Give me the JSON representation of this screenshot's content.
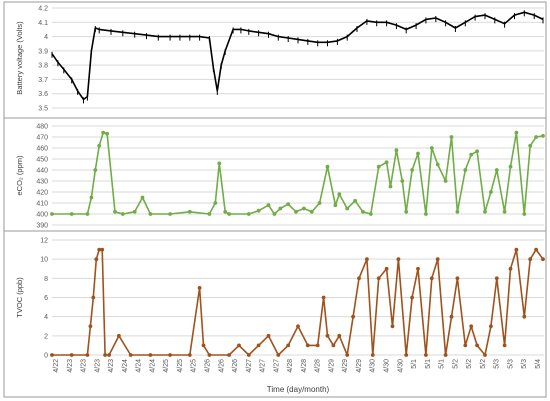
{
  "chart_data": [
    {
      "type": "line",
      "ylabel": "Battery voltage (Volts)",
      "ylim": [
        3.5,
        4.2
      ],
      "yticks": [
        "3.5",
        "3.6",
        "3.7",
        "3.8",
        "3.9",
        "4",
        "4.1",
        "4.2"
      ],
      "grid": true,
      "xrange": [
        0,
        25
      ],
      "series": [
        {
          "color": "#000000",
          "marker": "none",
          "x": [
            0.0,
            0.3,
            0.6,
            1.0,
            1.3,
            1.6,
            1.8,
            2.0,
            2.2,
            2.4,
            3.0,
            3.6,
            4.2,
            4.8,
            5.4,
            6.0,
            6.5,
            7.0,
            7.5,
            8.0,
            8.2,
            8.4,
            8.6,
            8.8,
            9.2,
            9.6,
            10.0,
            10.5,
            11.0,
            11.5,
            12.0,
            12.5,
            13.0,
            13.5,
            14.0,
            14.5,
            15.0,
            15.5,
            16.0,
            16.5,
            17.0,
            17.5,
            18.0,
            18.5,
            19.0,
            19.5,
            20.0,
            20.5,
            21.0,
            21.5,
            22.0,
            22.5,
            23.0,
            23.5,
            24.0,
            24.5,
            24.95
          ],
          "y": [
            3.88,
            3.82,
            3.77,
            3.7,
            3.62,
            3.56,
            3.58,
            3.9,
            4.06,
            4.05,
            4.04,
            4.03,
            4.02,
            4.01,
            4.0,
            4.0,
            4.0,
            4.0,
            4.0,
            3.99,
            3.78,
            3.62,
            3.8,
            3.9,
            4.05,
            4.05,
            4.04,
            4.03,
            4.02,
            4.0,
            3.99,
            3.98,
            3.97,
            3.96,
            3.96,
            3.97,
            4.0,
            4.06,
            4.11,
            4.1,
            4.1,
            4.08,
            4.05,
            4.08,
            4.12,
            4.13,
            4.1,
            4.06,
            4.1,
            4.14,
            4.15,
            4.12,
            4.09,
            4.15,
            4.17,
            4.15,
            4.12
          ]
        }
      ]
    },
    {
      "type": "line",
      "ylabel": "eCO₂ (ppm)",
      "ylim": [
        390,
        480
      ],
      "yticks": [
        "390",
        "400",
        "410",
        "420",
        "430",
        "440",
        "450",
        "460",
        "470",
        "480"
      ],
      "grid": true,
      "xrange": [
        0,
        25
      ],
      "series": [
        {
          "color": "#70ad47",
          "marker": "circle",
          "x": [
            0.0,
            1.0,
            1.8,
            2.0,
            2.2,
            2.4,
            2.6,
            2.8,
            3.2,
            3.6,
            4.2,
            4.6,
            5.0,
            6.0,
            7.0,
            8.0,
            8.3,
            8.5,
            8.8,
            9.0,
            10.0,
            10.5,
            11.0,
            11.3,
            11.6,
            12.0,
            12.4,
            12.8,
            13.2,
            13.6,
            14.0,
            14.4,
            14.6,
            15.0,
            15.4,
            15.8,
            16.2,
            16.6,
            17.0,
            17.2,
            17.5,
            17.8,
            18.0,
            18.3,
            18.6,
            19.0,
            19.3,
            19.6,
            20.0,
            20.3,
            20.6,
            21.0,
            21.3,
            21.6,
            22.0,
            22.3,
            22.6,
            23.0,
            23.3,
            23.6,
            24.0,
            24.3,
            24.6,
            24.95
          ],
          "y": [
            400,
            400,
            400,
            415,
            440,
            462,
            474,
            473,
            402,
            400,
            402,
            415,
            400,
            400,
            402,
            400,
            410,
            446,
            402,
            400,
            400,
            403,
            408,
            400,
            405,
            409,
            402,
            405,
            402,
            410,
            443,
            408,
            418,
            405,
            412,
            402,
            400,
            443,
            447,
            425,
            458,
            430,
            402,
            440,
            455,
            400,
            460,
            445,
            430,
            470,
            402,
            440,
            454,
            457,
            402,
            420,
            440,
            402,
            443,
            474,
            400,
            462,
            470,
            471
          ]
        }
      ]
    },
    {
      "type": "line",
      "ylabel": "TVOC (ppb)",
      "xlabel": "Time (day/month)",
      "ylim": [
        0,
        12
      ],
      "yticks": [
        "0",
        "2",
        "4",
        "6",
        "8",
        "10",
        "12"
      ],
      "grid": true,
      "xrange": [
        0,
        25
      ],
      "categories": [
        "4/22",
        "4/23",
        "4/23",
        "4/23",
        "4/23",
        "4/24",
        "4/24",
        "4/24",
        "4/25",
        "4/25",
        "4/25",
        "4/26",
        "4/26",
        "4/26",
        "4/27",
        "4/27",
        "4/27",
        "4/28",
        "4/28",
        "4/28",
        "4/29",
        "4/29",
        "4/29",
        "4/30",
        "4/30",
        "4/30",
        "5/1",
        "5/1",
        "5/1",
        "5/2",
        "5/2",
        "5/2",
        "5/3",
        "5/3",
        "5/3",
        "5/4"
      ],
      "series": [
        {
          "color": "#a0521c",
          "marker": "circle",
          "x": [
            0.0,
            1.0,
            1.8,
            1.95,
            2.1,
            2.25,
            2.4,
            2.55,
            2.7,
            2.9,
            3.4,
            4.0,
            5.0,
            6.0,
            7.0,
            7.5,
            7.7,
            8.0,
            9.0,
            9.5,
            10.0,
            10.5,
            11.0,
            11.5,
            12.0,
            12.5,
            13.0,
            13.5,
            13.8,
            14.0,
            14.3,
            14.6,
            15.0,
            15.3,
            15.6,
            16.0,
            16.3,
            16.6,
            17.0,
            17.3,
            17.6,
            18.0,
            18.3,
            18.6,
            19.0,
            19.3,
            19.6,
            20.0,
            20.3,
            20.6,
            21.0,
            21.3,
            21.6,
            22.0,
            22.3,
            22.6,
            23.0,
            23.3,
            23.6,
            24.0,
            24.3,
            24.6,
            24.95
          ],
          "y": [
            0,
            0,
            0,
            3,
            6,
            10,
            11,
            11,
            0,
            0,
            2,
            0,
            0,
            0,
            0,
            7,
            1,
            0,
            0,
            1,
            0,
            1,
            2,
            0,
            1,
            3,
            1,
            1,
            6,
            2,
            1,
            2,
            0,
            4,
            8,
            10,
            0,
            8,
            9,
            3,
            10,
            0,
            6,
            9,
            0,
            8,
            10,
            0,
            4,
            8,
            1,
            3,
            1,
            0,
            3,
            8,
            1,
            9,
            11,
            4,
            10,
            11,
            10
          ]
        }
      ]
    }
  ]
}
